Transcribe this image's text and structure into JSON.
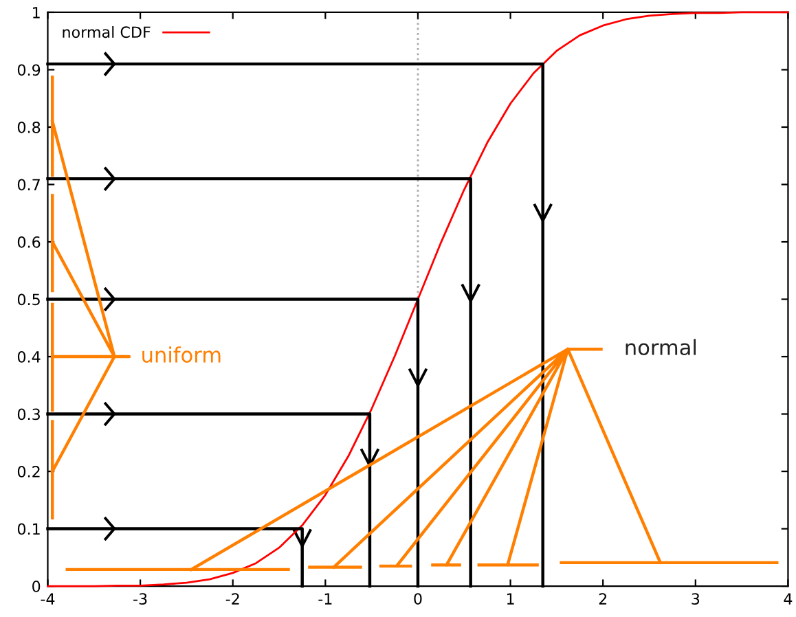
{
  "chart_data": {
    "type": "line",
    "xlim": [
      -4,
      4
    ],
    "ylim": [
      0,
      1
    ],
    "xticks": [
      -4,
      -3,
      -2,
      -1,
      0,
      1,
      2,
      3,
      4
    ],
    "yticks": [
      0,
      0.1,
      0.2,
      0.3,
      0.4,
      0.5,
      0.6,
      0.7,
      0.8,
      0.9,
      1
    ],
    "grid": false,
    "legend": "top left",
    "marker": "none",
    "line_style": "solid",
    "ref_lines": [
      {
        "axis": "x",
        "value": 0,
        "color": "#aaaaaa",
        "line_style": "dotted"
      }
    ],
    "annotations": [
      "uniform",
      "normal"
    ],
    "series": [
      {
        "name": "normal CDF",
        "color": "#ff0000",
        "x": [
          -4,
          -3.75,
          -3.5,
          -3.25,
          -3,
          -2.75,
          -2.5,
          -2.25,
          -2,
          -1.75,
          -1.5,
          -1.25,
          -1,
          -0.75,
          -0.5,
          -0.25,
          0,
          0.25,
          0.5,
          0.75,
          1,
          1.25,
          1.5,
          1.75,
          2,
          2.25,
          2.5,
          2.75,
          3,
          3.25,
          3.5,
          3.75,
          4
        ],
        "values": [
          0,
          0,
          0,
          0.001,
          0.001,
          0.003,
          0.006,
          0.012,
          0.023,
          0.04,
          0.067,
          0.106,
          0.159,
          0.227,
          0.309,
          0.401,
          0.5,
          0.599,
          0.691,
          0.773,
          0.841,
          0.894,
          0.933,
          0.96,
          0.977,
          0.988,
          0.994,
          0.997,
          0.999,
          0.999,
          1,
          1,
          1
        ]
      },
      {
        "color": "#000000",
        "x": [
          -4,
          -1.25,
          -1.25
        ],
        "values": [
          0.1,
          0.1,
          0
        ]
      },
      {
        "color": "#000000",
        "x": [
          -4,
          -0.52,
          -0.52
        ],
        "values": [
          0.3,
          0.3,
          0
        ]
      },
      {
        "color": "#000000",
        "x": [
          -4,
          0,
          0
        ],
        "values": [
          0.5,
          0.5,
          0
        ]
      },
      {
        "color": "#000000",
        "x": [
          -4,
          0.57,
          0.57
        ],
        "values": [
          0.71,
          0.71,
          0
        ]
      },
      {
        "color": "#000000",
        "x": [
          -4,
          1.35,
          1.35
        ],
        "values": [
          0.91,
          0.91,
          0
        ]
      },
      {
        "color": "#ff7f00",
        "x": [
          -3.95,
          -3.95
        ],
        "values": [
          0.887,
          0.716
        ]
      },
      {
        "color": "#ff7f00",
        "x": [
          -3.95,
          -3.95
        ],
        "values": [
          0.681,
          0.515
        ]
      },
      {
        "color": "#ff7f00",
        "x": [
          -3.95,
          -3.95
        ],
        "values": [
          0.491,
          0.307
        ]
      },
      {
        "color": "#ff7f00",
        "x": [
          -3.95,
          -3.95
        ],
        "values": [
          0.287,
          0.119
        ]
      },
      {
        "color": "#ff7f00",
        "x": [
          -3.95,
          -3.28,
          -3.95,
          -3.28,
          -3.95,
          -3.12,
          -3.28,
          -3.95
        ],
        "values": [
          0.81,
          0.4,
          0.6,
          0.4,
          0.4,
          0.4,
          0.4,
          0.2
        ]
      },
      {
        "color": "#ff7f00",
        "x": [
          -3.79,
          -1.4
        ],
        "values": [
          0.029,
          0.029
        ]
      },
      {
        "color": "#ff7f00",
        "x": [
          -1.17,
          -0.62
        ],
        "values": [
          0.033,
          0.033
        ]
      },
      {
        "color": "#ff7f00",
        "x": [
          -0.4,
          -0.08
        ],
        "values": [
          0.035,
          0.035
        ]
      },
      {
        "color": "#ff7f00",
        "x": [
          0.16,
          0.45
        ],
        "values": [
          0.037,
          0.037
        ]
      },
      {
        "color": "#ff7f00",
        "x": [
          0.66,
          1.29
        ],
        "values": [
          0.037,
          0.037
        ]
      },
      {
        "color": "#ff7f00",
        "x": [
          1.55,
          3.88
        ],
        "values": [
          0.041,
          0.041
        ]
      },
      {
        "color": "#ff7f00",
        "x": [
          -2.45,
          1.62,
          -0.91,
          1.62,
          -0.23,
          1.62,
          0.31,
          1.62,
          0.97,
          1.62,
          2.62,
          1.62,
          1.98
        ],
        "values": [
          0.029,
          0.413,
          0.033,
          0.413,
          0.035,
          0.413,
          0.037,
          0.413,
          0.037,
          0.413,
          0.041,
          0.413,
          0.413
        ]
      }
    ]
  }
}
